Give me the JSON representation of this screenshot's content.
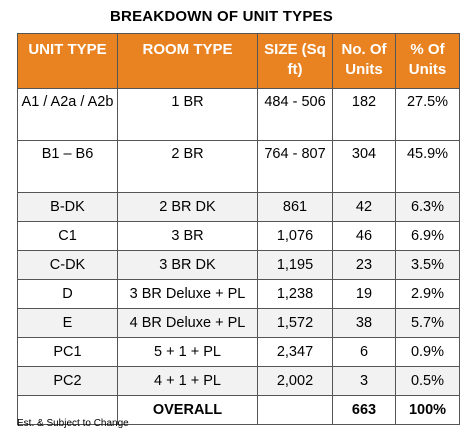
{
  "title": "BREAKDOWN OF UNIT TYPES",
  "headers": [
    "UNIT TYPE",
    "ROOM TYPE",
    "SIZE (Sq ft)",
    "No. Of Units",
    "% Of Units"
  ],
  "rows": [
    {
      "unit": "A1 / A2a / A2b",
      "room": "1 BR",
      "size": "484 - 506",
      "count": "182",
      "pct": "27.5%"
    },
    {
      "unit": "B1 – B6",
      "room": "2 BR",
      "size": "764 - 807",
      "count": "304",
      "pct": "45.9%"
    },
    {
      "unit": "B-DK",
      "room": "2 BR DK",
      "size": "861",
      "count": "42",
      "pct": "6.3%"
    },
    {
      "unit": "C1",
      "room": "3 BR",
      "size": "1,076",
      "count": "46",
      "pct": "6.9%"
    },
    {
      "unit": "C-DK",
      "room": "3 BR DK",
      "size": "1,195",
      "count": "23",
      "pct": "3.5%"
    },
    {
      "unit": "D",
      "room": "3 BR Deluxe + PL",
      "size": "1,238",
      "count": "19",
      "pct": "2.9%"
    },
    {
      "unit": "E",
      "room": "4 BR Deluxe + PL",
      "size": "1,572",
      "count": "38",
      "pct": "5.7%"
    },
    {
      "unit": "PC1",
      "room": "5 + 1 + PL",
      "size": "2,347",
      "count": "6",
      "pct": "0.9%"
    },
    {
      "unit": "PC2",
      "room": "4 + 1 + PL",
      "size": "2,002",
      "count": "3",
      "pct": "0.5%"
    }
  ],
  "total": {
    "label": "OVERALL",
    "count": "663",
    "pct": "100%"
  },
  "footnote": "Est. & Subject to Change",
  "colors": {
    "header_bg": "#e98322",
    "header_text": "#ffffff",
    "row_shade": "#f2f2f2"
  }
}
